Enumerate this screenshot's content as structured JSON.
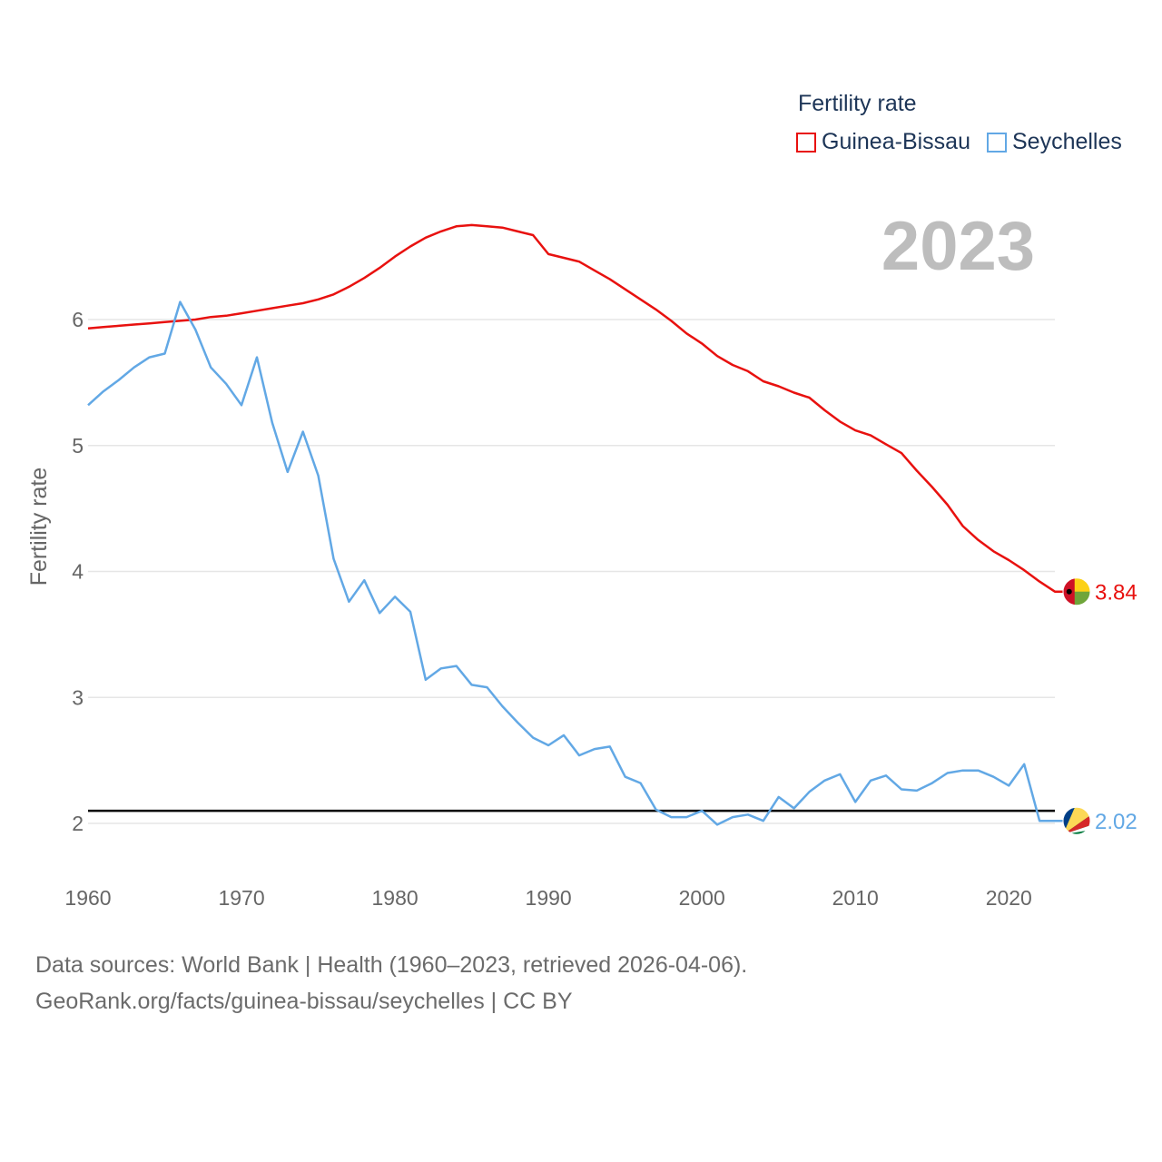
{
  "legend": {
    "title": "Fertility rate",
    "items": [
      {
        "label": "Guinea-Bissau",
        "color": "#e8110f"
      },
      {
        "label": "Seychelles",
        "color": "#62a8e5"
      }
    ]
  },
  "year_label": "2023",
  "source": {
    "line1": "Data sources: World Bank | Health (1960–2023, retrieved 2026-04-06).",
    "line2": "GeoRank.org/facts/guinea-bissau/seychelles | CC BY"
  },
  "chart_data": {
    "type": "line",
    "title": "Fertility rate",
    "xlabel": "",
    "ylabel": "Fertility rate",
    "xlim": [
      1960,
      2023
    ],
    "ylim": [
      1.6,
      6.8
    ],
    "xticks": [
      1960,
      1970,
      1980,
      1990,
      2000,
      2010,
      2020
    ],
    "yticks": [
      2,
      3,
      4,
      5,
      6
    ],
    "grid": true,
    "legend_position": "top-right",
    "reference_line": 2.1,
    "x": [
      1960,
      1961,
      1962,
      1963,
      1964,
      1965,
      1966,
      1967,
      1968,
      1969,
      1970,
      1971,
      1972,
      1973,
      1974,
      1975,
      1976,
      1977,
      1978,
      1979,
      1980,
      1981,
      1982,
      1983,
      1984,
      1985,
      1986,
      1987,
      1988,
      1989,
      1990,
      1991,
      1992,
      1993,
      1994,
      1995,
      1996,
      1997,
      1998,
      1999,
      2000,
      2001,
      2002,
      2003,
      2004,
      2005,
      2006,
      2007,
      2008,
      2009,
      2010,
      2011,
      2012,
      2013,
      2014,
      2015,
      2016,
      2017,
      2018,
      2019,
      2020,
      2021,
      2022,
      2023
    ],
    "series": [
      {
        "name": "Guinea-Bissau",
        "color": "#e8110f",
        "end_label": "3.84",
        "values": [
          5.93,
          5.94,
          5.95,
          5.96,
          5.97,
          5.98,
          5.99,
          6.0,
          6.02,
          6.03,
          6.05,
          6.07,
          6.09,
          6.11,
          6.13,
          6.16,
          6.2,
          6.26,
          6.33,
          6.41,
          6.5,
          6.58,
          6.65,
          6.7,
          6.74,
          6.75,
          6.74,
          6.73,
          6.7,
          6.67,
          6.52,
          6.49,
          6.46,
          6.39,
          6.32,
          6.24,
          6.16,
          6.08,
          5.99,
          5.89,
          5.81,
          5.71,
          5.64,
          5.59,
          5.51,
          5.47,
          5.42,
          5.38,
          5.28,
          5.19,
          5.12,
          5.08,
          5.01,
          4.94,
          4.8,
          4.67,
          4.53,
          4.36,
          4.25,
          4.16,
          4.09,
          4.01,
          3.92,
          3.84
        ]
      },
      {
        "name": "Seychelles",
        "color": "#62a8e5",
        "end_label": "2.02",
        "values": [
          5.32,
          5.43,
          5.52,
          5.62,
          5.7,
          5.73,
          6.14,
          5.92,
          5.62,
          5.49,
          5.32,
          5.7,
          5.18,
          4.79,
          5.11,
          4.76,
          4.1,
          3.76,
          3.93,
          3.67,
          3.8,
          3.68,
          3.14,
          3.23,
          3.25,
          3.1,
          3.08,
          2.93,
          2.8,
          2.68,
          2.62,
          2.7,
          2.54,
          2.59,
          2.61,
          2.37,
          2.32,
          2.11,
          2.05,
          2.05,
          2.1,
          1.99,
          2.05,
          2.07,
          2.02,
          2.21,
          2.12,
          2.25,
          2.34,
          2.39,
          2.17,
          2.34,
          2.38,
          2.27,
          2.26,
          2.32,
          2.4,
          2.42,
          2.42,
          2.37,
          2.3,
          2.47,
          2.02,
          2.02
        ]
      }
    ]
  }
}
